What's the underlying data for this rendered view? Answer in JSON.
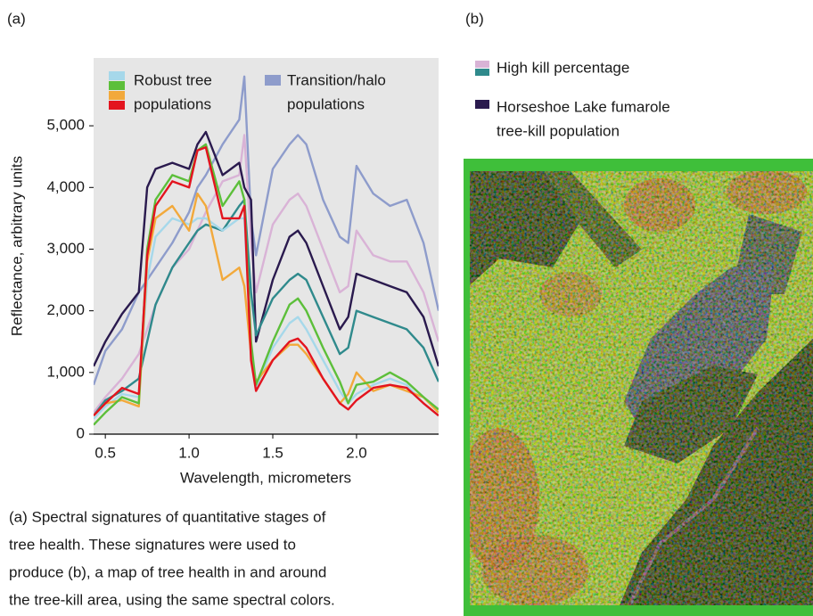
{
  "panel_a_label": "(a)",
  "panel_b_label": "(b)",
  "chart_data": {
    "type": "line",
    "ylabel": "Reflectance, arbitrary units",
    "xlabel": "Wavelength, micrometers",
    "xlim": [
      0.43,
      2.49
    ],
    "ylim": [
      0,
      6100
    ],
    "xticks": [
      0.5,
      {
        "value": 1,
        "label": "1.0"
      },
      1.5,
      {
        "value": 2,
        "label": "2.0"
      }
    ],
    "yticks": [
      0,
      {
        "value": 1000,
        "label": "1,000"
      },
      {
        "value": 2000,
        "label": "2,000"
      },
      {
        "value": 3000,
        "label": "3,000"
      },
      {
        "value": 4000,
        "label": "4,000"
      },
      {
        "value": 5000,
        "label": "5,000"
      }
    ],
    "legend": [
      {
        "text": [
          "Robust tree",
          "populations"
        ],
        "colors": [
          "#a6d8ea",
          "#5cbf3a",
          "#f2a93b",
          "#e3141f"
        ]
      },
      {
        "text": [
          "Transition/halo",
          "populations"
        ],
        "colors": [
          "#8e9ccb"
        ]
      }
    ],
    "x": [
      0.43,
      0.5,
      0.6,
      0.7,
      0.75,
      0.8,
      0.9,
      1.0,
      1.05,
      1.1,
      1.2,
      1.3,
      1.33,
      1.37,
      1.4,
      1.5,
      1.6,
      1.65,
      1.7,
      1.8,
      1.9,
      1.95,
      2.0,
      2.1,
      2.2,
      2.3,
      2.4,
      2.49
    ],
    "series": [
      {
        "color": "#8e9ccb",
        "values": [
          800,
          1350,
          1700,
          2300,
          2500,
          2700,
          3100,
          3600,
          4000,
          4200,
          4700,
          5100,
          5800,
          3500,
          2900,
          4300,
          4700,
          4850,
          4700,
          3800,
          3200,
          3100,
          4350,
          3900,
          3700,
          3800,
          3100,
          2000
        ]
      },
      {
        "color": "#d9b3d6",
        "values": [
          350,
          600,
          900,
          1300,
          1700,
          2100,
          2700,
          3000,
          3300,
          3600,
          4100,
          4200,
          4850,
          3100,
          2300,
          3400,
          3800,
          3900,
          3700,
          3000,
          2300,
          2400,
          3300,
          2900,
          2800,
          2800,
          2300,
          1500
        ]
      },
      {
        "color": "#2a1a4e",
        "values": [
          1100,
          1500,
          1950,
          2300,
          4000,
          4300,
          4400,
          4300,
          4700,
          4900,
          4200,
          4400,
          4000,
          3800,
          1500,
          2500,
          3200,
          3300,
          3100,
          2400,
          1700,
          1900,
          2600,
          2500,
          2400,
          2300,
          1900,
          1100
        ]
      },
      {
        "color": "#2f8a8c",
        "values": [
          300,
          550,
          700,
          900,
          1500,
          2100,
          2700,
          3100,
          3300,
          3400,
          3300,
          3700,
          3800,
          2300,
          1600,
          2200,
          2500,
          2600,
          2500,
          1900,
          1300,
          1400,
          2000,
          1900,
          1800,
          1700,
          1400,
          850
        ]
      },
      {
        "color": "#a6d8ea",
        "values": [
          250,
          450,
          650,
          600,
          2500,
          3200,
          3500,
          3400,
          3500,
          3500,
          3300,
          3500,
          3500,
          1400,
          750,
          1400,
          1800,
          1900,
          1700,
          1200,
          700,
          500,
          650,
          800,
          900,
          800,
          500,
          300
        ]
      },
      {
        "color": "#f2a93b",
        "values": [
          300,
          500,
          550,
          450,
          2800,
          3500,
          3700,
          3300,
          3900,
          3700,
          2500,
          2700,
          2400,
          1300,
          850,
          1200,
          1450,
          1450,
          1300,
          900,
          500,
          650,
          1000,
          700,
          800,
          700,
          600,
          350
        ]
      },
      {
        "color": "#5cbf3a",
        "values": [
          150,
          350,
          600,
          500,
          3000,
          3800,
          4200,
          4100,
          4600,
          4700,
          3700,
          4100,
          3800,
          1500,
          800,
          1500,
          2100,
          2200,
          2000,
          1400,
          850,
          500,
          800,
          850,
          1000,
          850,
          600,
          400
        ]
      },
      {
        "color": "#e3141f",
        "values": [
          300,
          500,
          750,
          650,
          2900,
          3700,
          4100,
          4000,
          4600,
          4650,
          3500,
          3500,
          3700,
          1200,
          700,
          1200,
          1500,
          1550,
          1400,
          900,
          500,
          400,
          550,
          750,
          800,
          750,
          500,
          300
        ]
      }
    ]
  },
  "map_legend": [
    {
      "text": [
        "High kill percentage"
      ],
      "colors": [
        "#d9b3d6",
        "#2f8a8c"
      ]
    },
    {
      "text": [
        "Horseshoe Lake fumarole",
        "tree-kill population"
      ],
      "colors": [
        "#2a1a4e"
      ]
    }
  ],
  "caption": [
    "(a) Spectral signatures of quantitative stages of",
    "tree health. These signatures were used to",
    "produce (b), a map of tree health in and around",
    "the tree-kill area, using the same spectral colors."
  ]
}
